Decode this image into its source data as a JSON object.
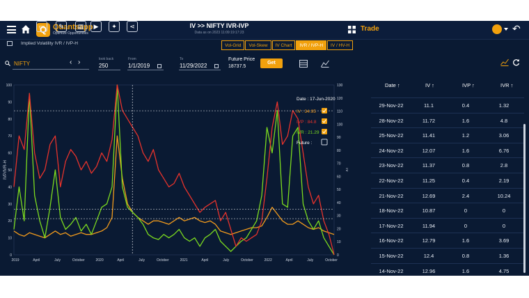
{
  "header": {
    "brand": "Quantsapp",
    "tagline": "Optimize Opportunities",
    "title": "IV >> NIFTY IVR-IVP",
    "subtitle": "Data as on 2023 11:09:19:17:23",
    "trade_label": "Trade"
  },
  "breadcrumb": {
    "text": "Implied Volatility IVR / IVP-H"
  },
  "tabs": [
    {
      "label": "Vol-Grid"
    },
    {
      "label": "Vol-Skew"
    },
    {
      "label": "IV Chart"
    },
    {
      "label": "IVR / IVP-H"
    },
    {
      "label": "IV / HV-H"
    }
  ],
  "controls": {
    "symbol": "NIFTY",
    "lookback_label": "look back",
    "lookback": "250",
    "from_label": "From",
    "from": "1/1/2019",
    "to_label": "To",
    "to": "11/29/2022",
    "future_label": "Future Price",
    "future_value": "18737.5",
    "get_label": "Get"
  },
  "chart_data": {
    "type": "line",
    "ylabel_left": "IVP/IVR-H",
    "ylabel_right": "IV",
    "ylim_left": [
      0,
      100
    ],
    "ylim_right": [
      0,
      130
    ],
    "x_ticks": [
      "2019",
      "April",
      "July",
      "October",
      "2020",
      "April",
      "July",
      "October",
      "2021",
      "April",
      "July",
      "October",
      "2022",
      "April",
      "July",
      "October"
    ],
    "y_ticks_left": [
      "0",
      "10",
      "20",
      "30",
      "40",
      "50",
      "60",
      "70",
      "80",
      "90",
      "100"
    ],
    "y_ticks_right": [
      "0",
      "10",
      "20",
      "30",
      "40",
      "50",
      "60",
      "70",
      "80",
      "90",
      "100",
      "110",
      "120",
      "130"
    ],
    "tooltip": {
      "date": "Date : 17-Jun-2020",
      "iv": "IV : 34.95",
      "ivp": "IVP : 84.8",
      "ivr": "IVR : 21.29",
      "future": "Future :"
    },
    "series": [
      {
        "name": "IVP",
        "color": "#e8332c",
        "values": [
          40,
          70,
          62,
          95,
          60,
          45,
          50,
          65,
          70,
          40,
          55,
          62,
          58,
          50,
          55,
          48,
          52,
          60,
          55,
          68,
          100,
          85,
          80,
          75,
          70,
          60,
          55,
          62,
          50,
          45,
          40,
          42,
          48,
          40,
          35,
          30,
          25,
          28,
          30,
          32,
          20,
          25,
          15,
          5,
          10,
          8,
          10,
          12,
          20,
          45,
          75,
          90,
          65,
          70,
          85,
          80,
          60,
          40,
          30,
          35,
          20,
          12,
          0
        ]
      },
      {
        "name": "IVR",
        "color": "#7ddc1f",
        "values": [
          15,
          40,
          20,
          95,
          35,
          20,
          10,
          28,
          50,
          22,
          15,
          18,
          22,
          14,
          18,
          12,
          20,
          28,
          30,
          40,
          100,
          40,
          28,
          25,
          22,
          18,
          12,
          10,
          9,
          12,
          10,
          12,
          15,
          10,
          8,
          10,
          5,
          10,
          12,
          15,
          8,
          5,
          2,
          5,
          8,
          10,
          15,
          20,
          35,
          75,
          60,
          85,
          30,
          28,
          70,
          75,
          30,
          20,
          15,
          20,
          10,
          5,
          0
        ]
      },
      {
        "name": "IV",
        "color": "#f29b1c",
        "values": [
          14,
          12,
          11,
          13,
          12,
          11,
          10,
          12,
          14,
          12,
          13,
          11,
          12,
          13,
          12,
          12,
          13,
          14,
          16,
          22,
          70,
          45,
          30,
          25,
          22,
          20,
          18,
          20,
          20,
          19,
          18,
          20,
          22,
          20,
          21,
          22,
          20,
          19,
          20,
          18,
          14,
          13,
          12,
          13,
          14,
          15,
          16,
          16,
          17,
          22,
          28,
          24,
          20,
          18,
          18,
          20,
          18,
          16,
          15,
          16,
          14,
          13,
          12
        ]
      }
    ]
  },
  "table": {
    "columns": [
      "Date ↑",
      "IV ↑",
      "IVP ↑",
      "IVR ↑"
    ],
    "rows": [
      [
        "29-Nov-22",
        "11.1",
        "0.4",
        "1.32"
      ],
      [
        "28-Nov-22",
        "11.72",
        "1.6",
        "4.8"
      ],
      [
        "25-Nov-22",
        "11.41",
        "1.2",
        "3.06"
      ],
      [
        "24-Nov-22",
        "12.07",
        "1.6",
        "6.76"
      ],
      [
        "23-Nov-22",
        "11.37",
        "0.8",
        "2.8"
      ],
      [
        "22-Nov-22",
        "11.25",
        "0.4",
        "2.19"
      ],
      [
        "21-Nov-22",
        "12.69",
        "2.4",
        "10.24"
      ],
      [
        "18-Nov-22",
        "10.87",
        "0",
        "0"
      ],
      [
        "17-Nov-22",
        "11.94",
        "0",
        "0"
      ],
      [
        "16-Nov-22",
        "12.79",
        "1.6",
        "3.69"
      ],
      [
        "15-Nov-22",
        "12.4",
        "0.8",
        "1.36"
      ],
      [
        "14-Nov-22",
        "12.96",
        "1.6",
        "4.75"
      ]
    ]
  },
  "colors": {
    "background": "#0a1a33",
    "accent": "#f2a10d"
  }
}
